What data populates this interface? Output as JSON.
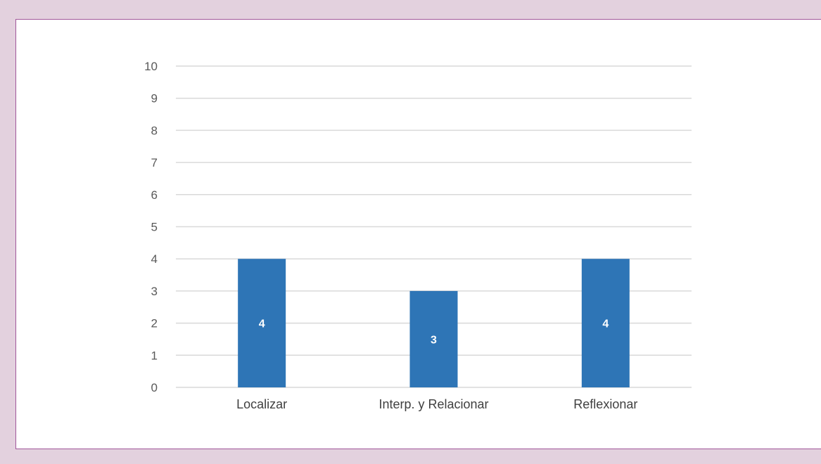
{
  "chart_data": {
    "type": "bar",
    "categories": [
      "Localizar",
      "Interp. y Relacionar",
      "Reflexionar"
    ],
    "values": [
      4,
      3,
      4
    ],
    "data_labels": [
      "4",
      "3",
      "4"
    ],
    "ylim": [
      0,
      10
    ],
    "yticks": [
      "0",
      "1",
      "2",
      "3",
      "4",
      "5",
      "6",
      "7",
      "8",
      "9",
      "10"
    ],
    "grid": true,
    "bar_color": "#2e75b6",
    "grid_color": "#d9d9d9",
    "frame_border_color": "#a0569a",
    "background_color": "#e3d1de"
  }
}
